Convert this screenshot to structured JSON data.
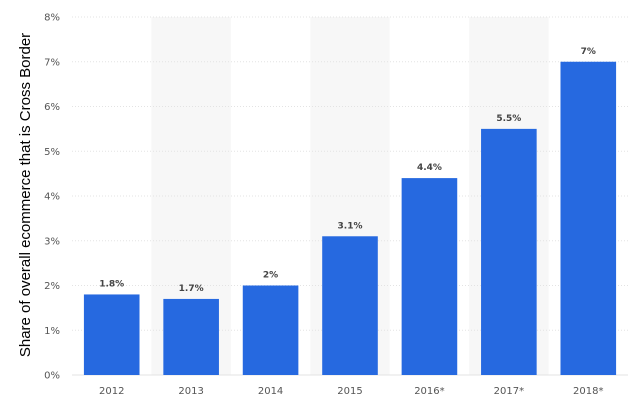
{
  "chart_data": {
    "type": "bar",
    "categories": [
      "2012",
      "2013",
      "2014",
      "2015",
      "2016*",
      "2017*",
      "2018*"
    ],
    "values": [
      1.8,
      1.7,
      2.0,
      3.1,
      4.4,
      5.5,
      7.0
    ],
    "value_labels": [
      "1.8%",
      "1.7%",
      "2%",
      "3.1%",
      "4.4%",
      "5.5%",
      "7%"
    ],
    "title": "",
    "xlabel": "",
    "ylabel": "Share of overall ecommerce that is Cross Border",
    "ylim": [
      0,
      8
    ],
    "yticks": [
      0,
      1,
      2,
      3,
      4,
      5,
      6,
      7,
      8
    ],
    "ytick_labels": [
      "0%",
      "1%",
      "2%",
      "3%",
      "4%",
      "5%",
      "6%",
      "7%",
      "8%"
    ],
    "grid": true,
    "legend": "none",
    "bar_color": "#2669e0",
    "band_color": "#f7f7f7",
    "grid_color": "#e3e3e3"
  }
}
